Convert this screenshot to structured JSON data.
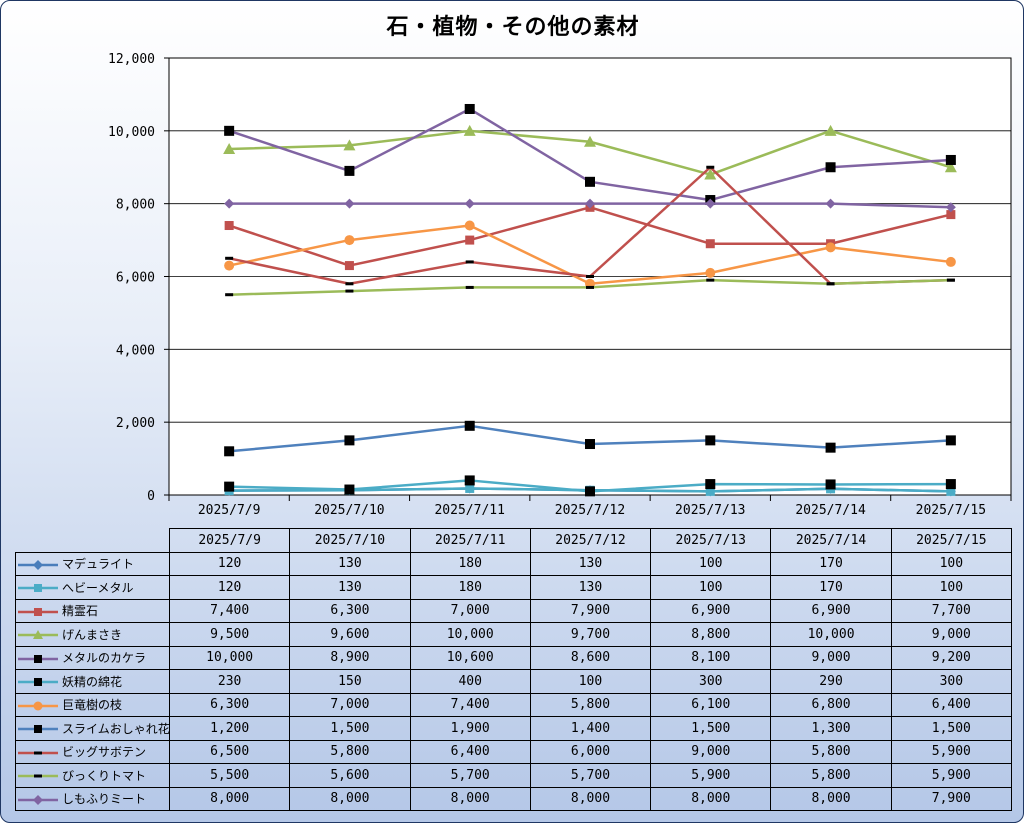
{
  "chart_data": {
    "type": "line",
    "title": "石・植物・その他の素材",
    "categories": [
      "2025/7/9",
      "2025/7/10",
      "2025/7/11",
      "2025/7/12",
      "2025/7/13",
      "2025/7/14",
      "2025/7/15"
    ],
    "ylim": [
      0,
      12000
    ],
    "yticks": [
      "0",
      "2,000",
      "4,000",
      "6,000",
      "8,000",
      "10,000",
      "12,000"
    ],
    "ytick_values": [
      0,
      2000,
      4000,
      6000,
      8000,
      10000,
      12000
    ],
    "grid": "horizontal",
    "legend": "data-table",
    "series": [
      {
        "name": "マデュライト",
        "color": "#4a7ebb",
        "marker": "diamond",
        "values": [
          120,
          130,
          180,
          130,
          100,
          170,
          100
        ],
        "labels": [
          "120",
          "130",
          "180",
          "130",
          "100",
          "170",
          "100"
        ]
      },
      {
        "name": "へビーメタル",
        "color": "#4bacc6",
        "marker": "square",
        "values": [
          120,
          130,
          180,
          130,
          100,
          170,
          100
        ],
        "labels": [
          "120",
          "130",
          "180",
          "130",
          "100",
          "170",
          "100"
        ]
      },
      {
        "name": "精霊石",
        "color": "#c0504d",
        "marker": "square",
        "values": [
          7400,
          6300,
          7000,
          7900,
          6900,
          6900,
          7700
        ],
        "labels": [
          "7,400",
          "6,300",
          "7,000",
          "7,900",
          "6,900",
          "6,900",
          "7,700"
        ]
      },
      {
        "name": "げんまさき",
        "color": "#9bbb59",
        "marker": "triangle",
        "values": [
          9500,
          9600,
          10000,
          9700,
          8800,
          10000,
          9000
        ],
        "labels": [
          "9,500",
          "9,600",
          "10,000",
          "9,700",
          "8,800",
          "10,000",
          "9,000"
        ]
      },
      {
        "name": "メタルのカケラ",
        "color": "#8064a2",
        "marker": "black-square",
        "values": [
          10000,
          8900,
          10600,
          8600,
          8100,
          9000,
          9200
        ],
        "labels": [
          "10,000",
          "8,900",
          "10,600",
          "8,600",
          "8,100",
          "9,000",
          "9,200"
        ]
      },
      {
        "name": "妖精の綿花",
        "color": "#4bacc6",
        "marker": "black-square",
        "values": [
          230,
          150,
          400,
          100,
          300,
          290,
          300
        ],
        "labels": [
          "230",
          "150",
          "400",
          "100",
          "300",
          "290",
          "300"
        ]
      },
      {
        "name": "巨竜樹の枝",
        "color": "#f79646",
        "marker": "circle",
        "values": [
          6300,
          7000,
          7400,
          5800,
          6100,
          6800,
          6400
        ],
        "labels": [
          "6,300",
          "7,000",
          "7,400",
          "5,800",
          "6,100",
          "6,800",
          "6,400"
        ]
      },
      {
        "name": "スライムおしゃれ花",
        "color": "#4f81bd",
        "marker": "black-square",
        "values": [
          1200,
          1500,
          1900,
          1400,
          1500,
          1300,
          1500
        ],
        "labels": [
          "1,200",
          "1,500",
          "1,900",
          "1,400",
          "1,500",
          "1,300",
          "1,500"
        ]
      },
      {
        "name": "ビッグサボテン",
        "color": "#c0504d",
        "marker": "dash",
        "values": [
          6500,
          5800,
          6400,
          6000,
          9000,
          5800,
          5900
        ],
        "labels": [
          "6,500",
          "5,800",
          "6,400",
          "6,000",
          "9,000",
          "5,800",
          "5,900"
        ]
      },
      {
        "name": "びっくりトマト",
        "color": "#9bbb59",
        "marker": "dash",
        "values": [
          5500,
          5600,
          5700,
          5700,
          5900,
          5800,
          5900
        ],
        "labels": [
          "5,500",
          "5,600",
          "5,700",
          "5,700",
          "5,900",
          "5,800",
          "5,900"
        ]
      },
      {
        "name": "しもふりミート",
        "color": "#8064a2",
        "marker": "diamond",
        "values": [
          8000,
          8000,
          8000,
          8000,
          8000,
          8000,
          7900
        ],
        "labels": [
          "8,000",
          "8,000",
          "8,000",
          "8,000",
          "8,000",
          "8,000",
          "7,900"
        ]
      }
    ]
  }
}
